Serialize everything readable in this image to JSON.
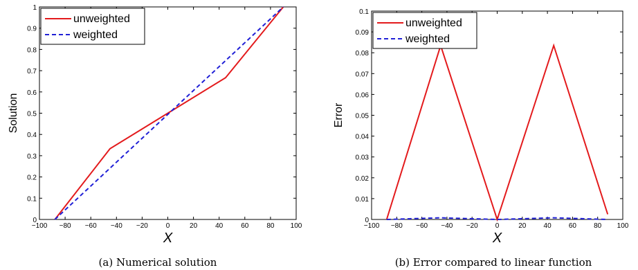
{
  "chart_data": [
    {
      "type": "line",
      "caption": "(a) Numerical solution",
      "xlabel": "X",
      "ylabel": "Solution",
      "xlim": [
        -100,
        100
      ],
      "ylim": [
        0,
        1
      ],
      "xticks": [
        "−100",
        "−80",
        "−60",
        "−40",
        "−20",
        "0",
        "20",
        "40",
        "60",
        "80",
        "100"
      ],
      "yticks": [
        "0",
        "0.1",
        "0.2",
        "0.3",
        "0.4",
        "0.5",
        "0.6",
        "0.7",
        "0.8",
        "0.9",
        "1"
      ],
      "legend_position": "top-left",
      "series": [
        {
          "name": "unweighted",
          "color": "#e31a1c",
          "dash": "solid",
          "x": [
            -88,
            -45,
            0,
            45,
            90
          ],
          "y": [
            0,
            0.333,
            0.5,
            0.667,
            1
          ]
        },
        {
          "name": "weighted",
          "color": "#1f1fd6",
          "dash": "dashed",
          "x": [
            -88,
            90
          ],
          "y": [
            0,
            1
          ]
        }
      ]
    },
    {
      "type": "line",
      "caption": "(b) Error compared to linear function",
      "xlabel": "X",
      "ylabel": "Error",
      "xlim": [
        -100,
        100
      ],
      "ylim": [
        0,
        0.1
      ],
      "xticks": [
        "−100",
        "−80",
        "−60",
        "−40",
        "−20",
        "0",
        "20",
        "40",
        "60",
        "80",
        "100"
      ],
      "yticks": [
        "0",
        "0.01",
        "0.02",
        "0.03",
        "0.04",
        "0.05",
        "0.06",
        "0.07",
        "0.08",
        "0.09",
        "0.1"
      ],
      "legend_position": "top-left",
      "series": [
        {
          "name": "unweighted",
          "color": "#e31a1c",
          "dash": "solid",
          "x": [
            -88,
            -45,
            0,
            45,
            88
          ],
          "y": [
            0,
            0.0835,
            0,
            0.0835,
            0.0025
          ]
        },
        {
          "name": "weighted",
          "color": "#1f1fd6",
          "dash": "dashed",
          "x": [
            -88,
            -45,
            0,
            45,
            88
          ],
          "y": [
            0,
            0.0008,
            0,
            0.0008,
            0
          ]
        }
      ]
    }
  ]
}
